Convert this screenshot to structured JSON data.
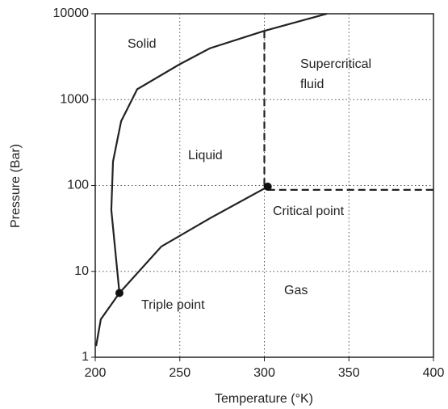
{
  "chart_data": {
    "type": "line",
    "x_label": "Temperature (°K)",
    "y_label": "Pressure (Bar)",
    "xlim": [
      200,
      400
    ],
    "ylim": [
      1,
      10000
    ],
    "log_y": true,
    "grid": true,
    "xticks": [
      200,
      250,
      300,
      350,
      400
    ],
    "yticks": [
      1,
      10,
      100,
      1000,
      10000
    ],
    "series": [
      {
        "color": "#222",
        "dash": false,
        "x": [
          200.5,
          203.3,
          214.3
        ],
        "values": [
          1.35,
          2.77,
          5.6
        ]
      },
      {
        "color": "#222",
        "dash": false,
        "x": [
          214.3,
          209.5,
          210.5,
          215.3,
          224.8,
          249.6,
          267.8,
          299.8,
          337
        ],
        "values": [
          5.6,
          52,
          190,
          560,
          1320,
          2560,
          3960,
          6300,
          10000
        ]
      },
      {
        "color": "#222",
        "dash": false,
        "x": [
          214.3,
          239.1,
          267.8,
          302
        ],
        "values": [
          5.6,
          19.5,
          41.5,
          97
        ]
      },
      {
        "color": "#222",
        "dash": true,
        "x": [
          300,
          300
        ],
        "values": [
          6300,
          100
        ]
      },
      {
        "color": "#222",
        "dash": true,
        "x": [
          302,
          400
        ],
        "values": [
          89,
          89
        ]
      }
    ],
    "points": {
      "color": "#111",
      "x": [
        214.3,
        302
      ],
      "values": [
        5.6,
        97
      ]
    },
    "annotations": [
      "Solid",
      "Supercritical",
      "fluid",
      "Liquid",
      "Critical point",
      "Gas",
      "Triple point"
    ]
  }
}
